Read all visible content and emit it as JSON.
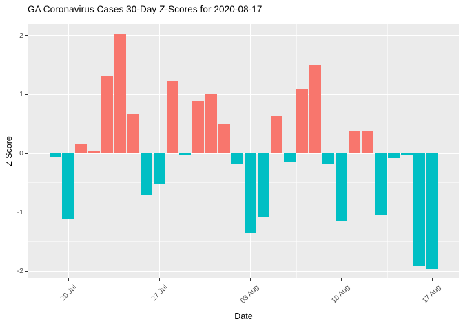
{
  "chart_data": {
    "type": "bar",
    "title": "GA Coronavirus Cases 30-Day Z-Scores for 2020-08-17",
    "xlabel": "Date",
    "ylabel": "Z Score",
    "x": [
      "2020-07-19",
      "2020-07-20",
      "2020-07-21",
      "2020-07-22",
      "2020-07-23",
      "2020-07-24",
      "2020-07-25",
      "2020-07-26",
      "2020-07-27",
      "2020-07-28",
      "2020-07-29",
      "2020-07-30",
      "2020-07-31",
      "2020-08-01",
      "2020-08-02",
      "2020-08-03",
      "2020-08-04",
      "2020-08-05",
      "2020-08-06",
      "2020-08-07",
      "2020-08-08",
      "2020-08-09",
      "2020-08-10",
      "2020-08-11",
      "2020-08-12",
      "2020-08-13",
      "2020-08-14",
      "2020-08-15",
      "2020-08-16",
      "2020-08-17"
    ],
    "values": [
      -0.06,
      -1.12,
      0.15,
      0.04,
      1.32,
      2.03,
      0.66,
      -0.7,
      -0.53,
      1.23,
      -0.04,
      0.89,
      1.02,
      0.49,
      -0.18,
      -1.35,
      -1.07,
      0.63,
      -0.14,
      1.09,
      1.51,
      -0.17,
      -1.14,
      0.37,
      0.37,
      -1.05,
      -0.08,
      -0.03,
      -1.91,
      -1.96
    ],
    "x_tick_labels": [
      "20 Jul",
      "27 Jul",
      "03 Aug",
      "10 Aug",
      "17 Aug"
    ],
    "x_tick_dates": [
      "2020-07-20",
      "2020-07-27",
      "2020-08-03",
      "2020-08-10",
      "2020-08-17"
    ],
    "y_ticks": [
      2,
      1,
      0,
      -1,
      -2
    ],
    "y_minor_ticks": [
      1.5,
      0.5,
      -0.5,
      -1.5
    ],
    "ylim": [
      -2.2,
      2.25
    ],
    "grid": true,
    "legend_position": "none",
    "positive_color": "#F8766D",
    "negative_color": "#00BFC4",
    "panel_background": "#EBEBEB",
    "gridline_color": "#FFFFFF",
    "axis_text_color": "#4D4D4D",
    "tick_color": "#333333"
  }
}
